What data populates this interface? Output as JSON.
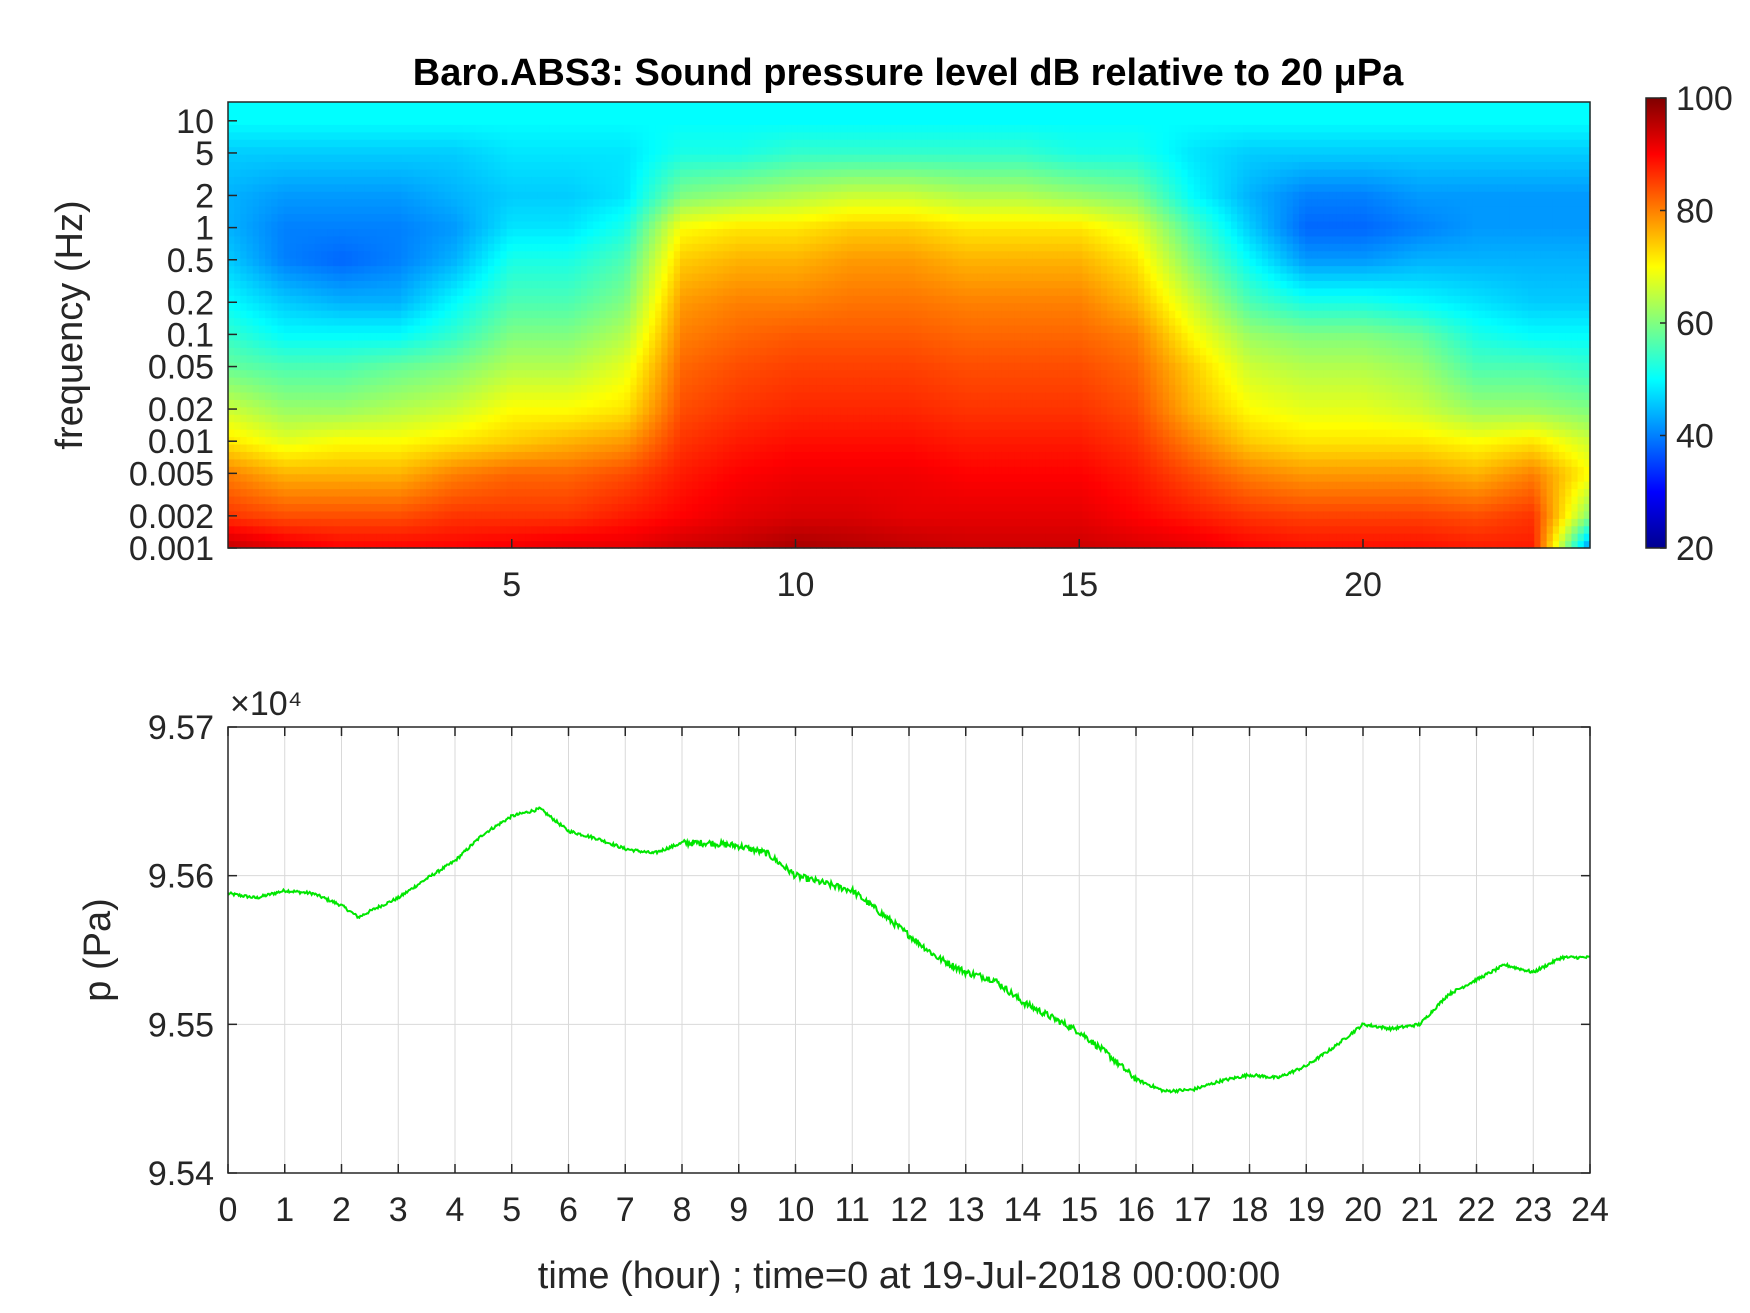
{
  "colors": {
    "line": "#00e600",
    "axis": "#262626",
    "grid": "#d9d9d9",
    "colormap": [
      "#00008f",
      "#0000ff",
      "#0080ff",
      "#00ffff",
      "#80ff80",
      "#ffff00",
      "#ff8000",
      "#ff0000",
      "#800000"
    ]
  },
  "chart_data": [
    {
      "type": "heatmap",
      "title": "Baro.ABS3: Sound pressure level dB relative to 20 μPa",
      "xlabel": "",
      "ylabel": "frequency (Hz)",
      "xlim": [
        0,
        24
      ],
      "ylim": [
        0.001,
        15
      ],
      "yscale": "log",
      "x_ticks": [
        5,
        10,
        15,
        20
      ],
      "y_ticks": [
        0.001,
        0.002,
        0.005,
        0.01,
        0.02,
        0.05,
        0.1,
        0.2,
        0.5,
        1,
        2,
        5,
        10
      ],
      "y_tick_labels": [
        "0.001",
        "0.002",
        "0.005",
        "0.01",
        "0.02",
        "0.05",
        "0.1",
        "0.2",
        "0.5",
        "1",
        "2",
        "5",
        "10"
      ],
      "colorbar": {
        "range": [
          20,
          100
        ],
        "ticks": [
          20,
          40,
          60,
          80,
          100
        ]
      },
      "grid": false,
      "x_hours": [
        0,
        1,
        2,
        3,
        4,
        5,
        6,
        7,
        8,
        9,
        10,
        11,
        12,
        13,
        14,
        15,
        16,
        17,
        18,
        19,
        20,
        21,
        22,
        23,
        24
      ],
      "frequency_bands_hz": [
        0.001,
        0.002,
        0.005,
        0.01,
        0.02,
        0.05,
        0.1,
        0.2,
        0.5,
        1,
        2,
        5,
        10
      ],
      "level_db": [
        [
          95,
          86,
          80,
          72,
          66,
          58,
          54,
          50,
          46,
          44,
          44,
          46,
          50
        ],
        [
          92,
          84,
          76,
          68,
          62,
          56,
          50,
          46,
          40,
          40,
          42,
          46,
          50
        ],
        [
          90,
          84,
          76,
          70,
          62,
          56,
          50,
          44,
          38,
          40,
          42,
          46,
          50
        ],
        [
          90,
          84,
          76,
          70,
          64,
          58,
          50,
          44,
          40,
          40,
          42,
          46,
          50
        ],
        [
          90,
          86,
          80,
          72,
          66,
          60,
          54,
          50,
          44,
          42,
          44,
          46,
          50
        ],
        [
          91,
          86,
          82,
          74,
          70,
          64,
          60,
          56,
          52,
          48,
          46,
          48,
          50
        ],
        [
          92,
          86,
          82,
          76,
          70,
          64,
          60,
          56,
          52,
          48,
          46,
          48,
          50
        ],
        [
          92,
          88,
          84,
          78,
          72,
          68,
          64,
          60,
          56,
          52,
          48,
          48,
          50
        ],
        [
          94,
          90,
          88,
          86,
          84,
          82,
          80,
          78,
          74,
          70,
          60,
          52,
          50
        ],
        [
          95,
          92,
          90,
          88,
          86,
          84,
          82,
          80,
          76,
          72,
          62,
          52,
          50
        ],
        [
          97,
          93,
          91,
          89,
          87,
          85,
          83,
          80,
          76,
          72,
          64,
          54,
          50
        ],
        [
          96,
          93,
          91,
          89,
          87,
          85,
          83,
          81,
          78,
          74,
          66,
          54,
          50
        ],
        [
          95,
          92,
          91,
          89,
          87,
          85,
          83,
          81,
          78,
          74,
          66,
          54,
          50
        ],
        [
          94,
          92,
          90,
          88,
          86,
          84,
          82,
          80,
          76,
          72,
          64,
          54,
          50
        ],
        [
          94,
          92,
          90,
          88,
          86,
          84,
          82,
          80,
          76,
          72,
          64,
          54,
          50
        ],
        [
          94,
          92,
          90,
          88,
          86,
          84,
          82,
          80,
          76,
          72,
          62,
          52,
          50
        ],
        [
          93,
          90,
          88,
          86,
          84,
          82,
          80,
          76,
          72,
          68,
          60,
          52,
          50
        ],
        [
          92,
          88,
          84,
          80,
          76,
          74,
          70,
          66,
          60,
          56,
          50,
          48,
          50
        ],
        [
          90,
          86,
          80,
          74,
          70,
          66,
          62,
          56,
          50,
          46,
          44,
          46,
          50
        ],
        [
          89,
          85,
          78,
          72,
          68,
          64,
          60,
          52,
          42,
          38,
          40,
          46,
          50
        ],
        [
          89,
          85,
          78,
          72,
          68,
          64,
          60,
          52,
          42,
          38,
          40,
          46,
          50
        ],
        [
          89,
          85,
          78,
          72,
          66,
          62,
          58,
          50,
          44,
          40,
          42,
          46,
          50
        ],
        [
          88,
          84,
          76,
          70,
          62,
          56,
          52,
          48,
          44,
          42,
          42,
          46,
          50
        ],
        [
          88,
          86,
          80,
          72,
          62,
          56,
          50,
          46,
          44,
          42,
          42,
          46,
          50
        ],
        [
          40,
          60,
          70,
          66,
          60,
          54,
          50,
          46,
          44,
          42,
          42,
          46,
          50
        ]
      ]
    },
    {
      "type": "line",
      "title": "",
      "xlabel": "time (hour) ; time=0 at 19-Jul-2018 00:00:00",
      "ylabel": "p (Pa)",
      "xlim": [
        0,
        24
      ],
      "ylim": [
        95400,
        95700
      ],
      "x_ticks": [
        0,
        1,
        2,
        3,
        4,
        5,
        6,
        7,
        8,
        9,
        10,
        11,
        12,
        13,
        14,
        15,
        16,
        17,
        18,
        19,
        20,
        21,
        22,
        23,
        24
      ],
      "y_ticks": [
        9.54,
        9.55,
        9.56,
        9.57
      ],
      "y_exponent_label": "×10⁴",
      "grid": true,
      "series": [
        {
          "x": [
            0,
            0.5,
            1,
            1.5,
            2,
            2.3,
            2.6,
            3,
            3.5,
            4,
            4.5,
            5,
            5.5,
            6,
            6.5,
            7,
            7.5,
            8,
            8.5,
            9,
            9.5,
            10,
            10.5,
            11,
            11.5,
            12,
            12.5,
            13,
            13.5,
            14,
            14.5,
            15,
            15.5,
            16,
            16.5,
            17,
            17.5,
            18,
            18.5,
            19,
            19.5,
            20,
            20.5,
            21,
            21.5,
            22,
            22.5,
            23,
            23.5,
            24
          ],
          "y": [
            95588,
            95585,
            95590,
            95588,
            95580,
            95572,
            95578,
            95585,
            95598,
            95610,
            95628,
            95640,
            95645,
            95630,
            95625,
            95618,
            95615,
            95622,
            95622,
            95620,
            95615,
            95600,
            95595,
            95590,
            95575,
            95560,
            95545,
            95535,
            95530,
            95515,
            95505,
            95495,
            95480,
            95463,
            95455,
            95456,
            95462,
            95466,
            95464,
            95472,
            95485,
            95500,
            95497,
            95500,
            95520,
            95530,
            95540,
            95535,
            95545,
            95545
          ]
        }
      ]
    }
  ]
}
